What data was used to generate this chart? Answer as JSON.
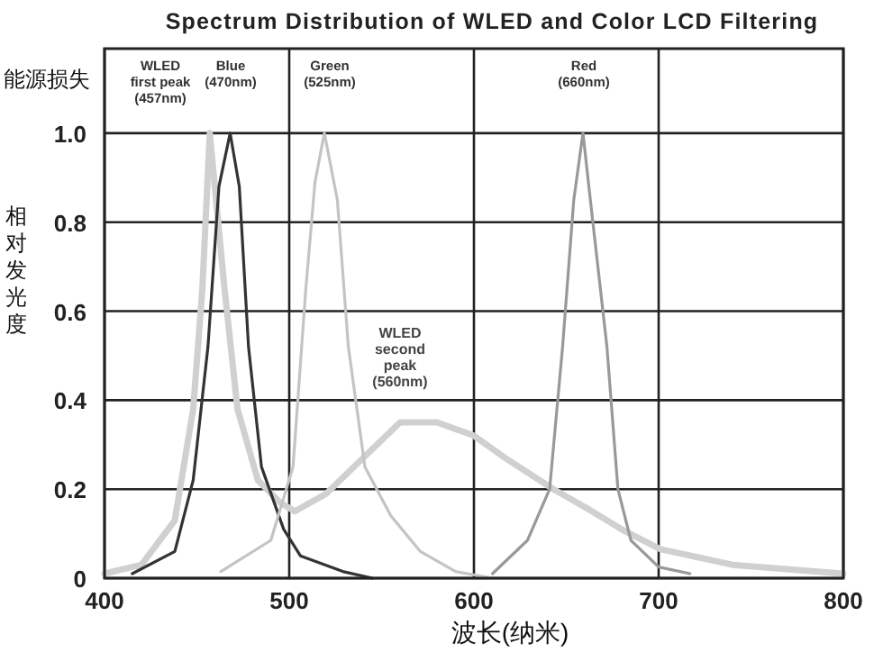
{
  "chart_data": {
    "type": "line",
    "title": "Spectrum Distribution of WLED and Color LCD Filtering",
    "xlabel": "波长(纳米)",
    "ylabel": "相对发光度",
    "xlim": [
      400,
      800
    ],
    "ylim": [
      0,
      1.19
    ],
    "xticks": [
      400,
      500,
      600,
      700,
      800
    ],
    "yticks": [
      0,
      0.2,
      0.4,
      0.6,
      0.8,
      {
        "value": 1.0,
        "label": "1.0"
      }
    ],
    "grid": true,
    "series": [
      {
        "color": "#d0d0d0",
        "x": [
          400,
          420,
          438,
          448,
          453,
          457,
          465,
          472,
          483,
          495,
          503,
          520,
          540,
          560,
          580,
          600,
          617,
          643,
          660,
          682,
          701,
          740,
          800
        ],
        "values": [
          0.01,
          0.03,
          0.13,
          0.38,
          0.65,
          1.0,
          0.65,
          0.38,
          0.22,
          0.17,
          0.15,
          0.19,
          0.27,
          0.35,
          0.35,
          0.32,
          0.27,
          0.2,
          0.16,
          0.105,
          0.065,
          0.03,
          0.01
        ]
      },
      {
        "color": "#333333",
        "x": [
          415,
          438,
          448,
          456,
          462,
          468,
          473,
          478,
          485,
          497,
          506,
          529,
          545
        ],
        "values": [
          0.01,
          0.06,
          0.22,
          0.52,
          0.88,
          1.0,
          0.88,
          0.52,
          0.25,
          0.11,
          0.05,
          0.015,
          0
        ]
      },
      {
        "color": "#c4c4c4",
        "x": [
          463,
          490,
          502,
          509,
          514,
          519,
          526,
          532,
          541,
          555,
          571,
          590,
          610
        ],
        "values": [
          0.015,
          0.085,
          0.25,
          0.65,
          0.89,
          1.0,
          0.85,
          0.52,
          0.25,
          0.14,
          0.06,
          0.015,
          0
        ]
      },
      {
        "color": "#999999",
        "x": [
          610,
          629,
          641,
          648,
          654,
          659,
          663,
          672,
          678,
          685,
          700,
          717
        ],
        "values": [
          0.01,
          0.085,
          0.2,
          0.52,
          0.85,
          1.0,
          0.85,
          0.52,
          0.2,
          0.085,
          0.025,
          0.01
        ]
      }
    ],
    "annotations": [
      "WLED\nfirst peak\n(457nm)",
      "Blue\n(470nm)",
      "Green\n(525nm)",
      "Red\n(660nm)",
      {
        "text": "WLED\nsecond\npeak\n(560nm)",
        "x": 560,
        "y": 0.35
      },
      "能源损失"
    ]
  }
}
